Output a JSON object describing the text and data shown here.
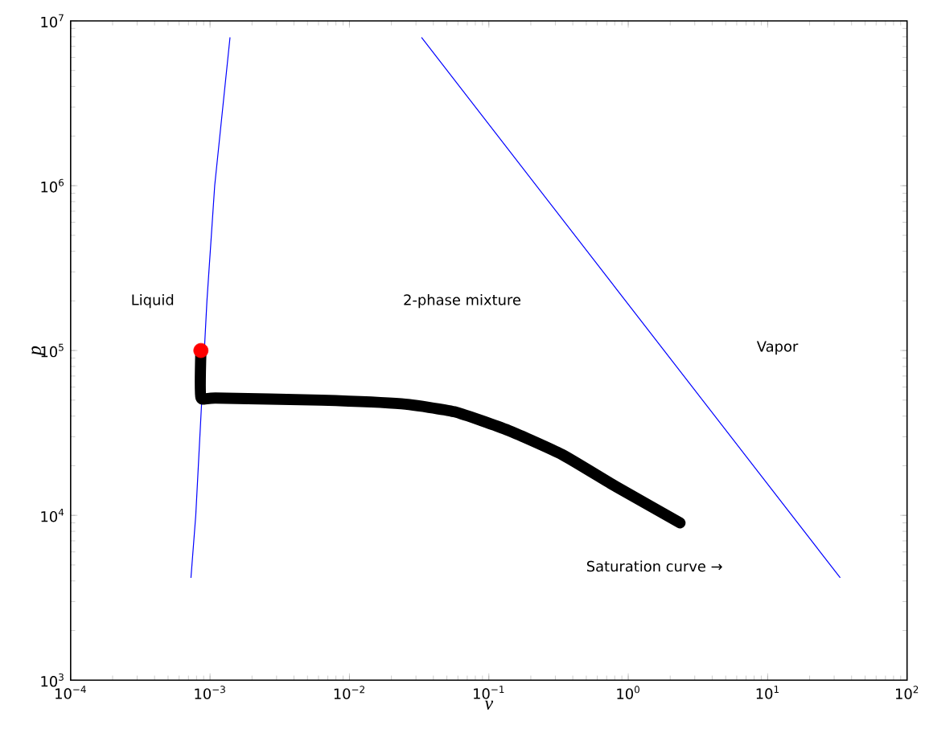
{
  "chart_data": {
    "type": "line",
    "xlabel": "v",
    "ylabel": "p",
    "log": "xy",
    "grid": false,
    "xlim": [
      0.0001,
      100
    ],
    "ylim": [
      1000,
      10000000
    ],
    "xticks": [
      {
        "value": 0.0001,
        "label": "10$^{−4}$"
      },
      {
        "value": 0.001,
        "label": "10$^{−3}$"
      },
      {
        "value": 0.01,
        "label": "10$^{−2}$"
      },
      {
        "value": 0.1,
        "label": "10$^{−1}$"
      },
      {
        "value": 1,
        "label": "10$^{0}$"
      },
      {
        "value": 10,
        "label": "10$^{1}$"
      },
      {
        "value": 100,
        "label": "10$^{2}$"
      }
    ],
    "yticks": [
      {
        "value": 1000,
        "label": "10$^{3}$"
      },
      {
        "value": 10000,
        "label": "10$^{4}$"
      },
      {
        "value": 100000,
        "label": "10$^{5}$"
      },
      {
        "value": 1000000,
        "label": "10$^{6}$"
      },
      {
        "value": 10000000,
        "label": "10$^{7}$"
      }
    ],
    "series": [
      {
        "color": "#0000ff",
        "x": [
          0.00073,
          0.00079,
          0.00095,
          0.00108,
          0.00139
        ],
        "values": [
          4200,
          10000,
          200000,
          1000000,
          7900000
        ]
      },
      {
        "color": "#0000ff",
        "x": [
          0.033,
          33
        ],
        "values": [
          7900000,
          4200
        ]
      },
      {
        "type": "scatter",
        "marker": "circle",
        "color": "#ff0000",
        "x": [
          0.00086
        ],
        "values": [
          100000
        ]
      },
      {
        "color": "#000000",
        "x": [
          0.00086,
          0.00086,
          0.0011,
          0.0063,
          0.0236,
          0.0566,
          0.139,
          0.335,
          0.81,
          2.35
        ],
        "values": [
          100000,
          52000,
          51500,
          50000,
          47500,
          42500,
          32700,
          23400,
          15000,
          9000
        ]
      }
    ],
    "annotations": [
      "Liquid",
      "2-phase mixture",
      "Vapor",
      "Saturation curve →"
    ]
  }
}
